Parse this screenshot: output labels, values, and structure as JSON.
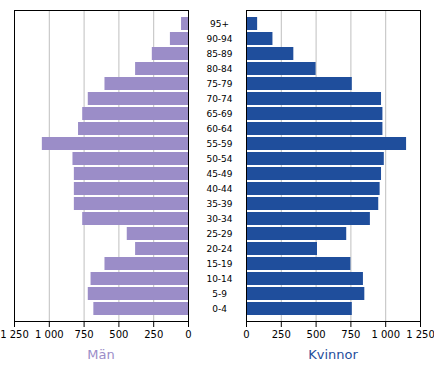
{
  "chart_data": [
    {
      "type": "bar",
      "orientation": "horizontal",
      "xlabel": "Män",
      "categories": [
        "0-4",
        "5-9",
        "10-14",
        "15-19",
        "20-24",
        "25-29",
        "30-34",
        "35-39",
        "40-44",
        "45-49",
        "50-54",
        "55-59",
        "60-64",
        "65-69",
        "70-74",
        "75-79",
        "80-84",
        "85-89",
        "90-94",
        "95+"
      ],
      "values": [
        680,
        720,
        700,
        600,
        380,
        440,
        760,
        820,
        820,
        820,
        830,
        1050,
        790,
        760,
        720,
        600,
        380,
        260,
        130,
        50
      ],
      "color": "#9b8dc8",
      "xlim": [
        1250,
        0
      ],
      "xticks": [
        0,
        250,
        500,
        750,
        {
          "value": 1000,
          "label": "1 000"
        },
        {
          "value": 1250,
          "label": "1 250"
        }
      ],
      "grid": true,
      "tick_labels": "x"
    },
    {
      "type": "bar",
      "orientation": "horizontal",
      "xlabel": "Kvinnor",
      "categories": [
        "0-4",
        "5-9",
        "10-14",
        "15-19",
        "20-24",
        "25-29",
        "30-34",
        "35-39",
        "40-44",
        "45-49",
        "50-54",
        "55-59",
        "60-64",
        "65-69",
        "70-74",
        "75-79",
        "80-84",
        "85-89",
        "90-94",
        "95+"
      ],
      "values": [
        760,
        850,
        840,
        750,
        510,
        720,
        890,
        950,
        960,
        970,
        990,
        1150,
        980,
        980,
        970,
        760,
        500,
        340,
        190,
        80
      ],
      "color": "#1f4e9c",
      "xlim": [
        0,
        1250
      ],
      "xticks": [
        0,
        250,
        500,
        750,
        {
          "value": 1000,
          "label": "1 000"
        },
        {
          "value": 1250,
          "label": "1 250"
        }
      ],
      "grid": true
    }
  ]
}
